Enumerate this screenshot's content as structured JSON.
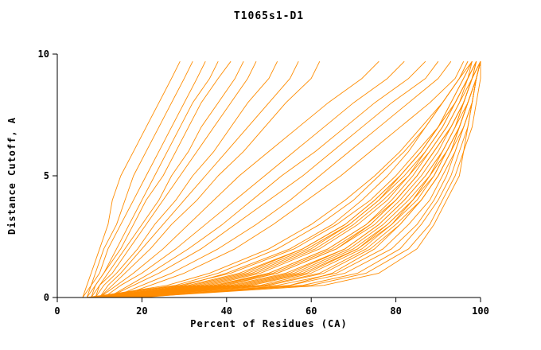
{
  "colors": {
    "line": "#ff8c00",
    "axis": "#000000",
    "background": "#ffffff"
  },
  "chart_data": {
    "type": "line",
    "title": "T1065s1-D1",
    "xlabel": "Percent of Residues (CA)",
    "ylabel": "Distance Cutoff, A",
    "xlim": [
      0,
      100
    ],
    "ylim": [
      0,
      10
    ],
    "xticks": [
      0,
      20,
      40,
      60,
      80,
      100
    ],
    "yticks": [
      0,
      5,
      10
    ],
    "grid": false,
    "legend": "none",
    "y_grid": [
      0,
      0.5,
      1,
      2,
      3,
      4,
      5,
      6,
      7,
      8,
      9,
      9.7
    ],
    "series": [
      [
        6,
        7,
        8,
        10,
        12,
        13,
        15,
        18,
        21,
        24,
        27,
        29
      ],
      [
        7,
        8,
        9,
        11,
        14,
        16,
        18,
        21,
        24,
        27,
        30,
        32
      ],
      [
        6,
        8,
        10,
        12,
        15,
        18,
        21,
        24,
        27,
        30,
        33,
        35
      ],
      [
        8,
        9,
        11,
        14,
        17,
        20,
        23,
        26,
        29,
        32,
        36,
        38
      ],
      [
        7,
        9,
        11,
        15,
        18,
        21,
        25,
        28,
        31,
        34,
        38,
        41
      ],
      [
        9,
        10,
        12,
        16,
        20,
        24,
        27,
        31,
        34,
        38,
        42,
        44
      ],
      [
        8,
        10,
        13,
        17,
        21,
        25,
        29,
        33,
        37,
        41,
        45,
        47
      ],
      [
        9,
        11,
        14,
        19,
        23,
        28,
        32,
        37,
        41,
        45,
        50,
        52
      ],
      [
        10,
        12,
        15,
        20,
        25,
        30,
        35,
        40,
        45,
        50,
        55,
        57
      ],
      [
        10,
        13,
        16,
        22,
        27,
        33,
        38,
        44,
        49,
        54,
        60,
        62
      ],
      [
        10,
        14,
        18,
        25,
        31,
        37,
        43,
        50,
        57,
        64,
        72,
        76
      ],
      [
        11,
        15,
        20,
        28,
        35,
        42,
        49,
        56,
        63,
        70,
        78,
        82
      ],
      [
        12,
        17,
        22,
        31,
        39,
        46,
        53,
        61,
        68,
        75,
        83,
        87
      ],
      [
        12,
        18,
        24,
        34,
        42,
        50,
        58,
        65,
        72,
        79,
        87,
        90
      ],
      [
        13,
        20,
        27,
        38,
        47,
        55,
        62,
        69,
        76,
        83,
        90,
        93
      ],
      [
        14,
        22,
        30,
        42,
        51,
        59,
        67,
        74,
        81,
        88,
        94,
        96
      ],
      [
        7,
        30,
        40,
        55,
        65,
        72,
        78,
        83,
        87,
        91,
        95,
        97
      ],
      [
        8,
        34,
        46,
        60,
        69,
        76,
        81,
        86,
        90,
        93,
        96,
        98
      ],
      [
        9,
        38,
        50,
        64,
        73,
        79,
        84,
        88,
        92,
        95,
        97,
        99
      ],
      [
        7,
        28,
        38,
        52,
        62,
        70,
        76,
        82,
        87,
        91,
        95,
        98
      ],
      [
        8,
        32,
        44,
        58,
        68,
        75,
        81,
        86,
        90,
        94,
        97,
        99
      ],
      [
        10,
        40,
        52,
        66,
        74,
        80,
        85,
        89,
        93,
        96,
        98,
        100
      ],
      [
        9,
        36,
        48,
        62,
        71,
        78,
        83,
        88,
        92,
        95,
        98,
        100
      ],
      [
        8,
        26,
        36,
        50,
        60,
        68,
        75,
        81,
        86,
        91,
        95,
        97
      ],
      [
        10,
        42,
        55,
        68,
        76,
        82,
        87,
        91,
        94,
        96,
        98,
        99
      ],
      [
        11,
        45,
        58,
        71,
        78,
        84,
        88,
        92,
        95,
        97,
        99,
        100
      ],
      [
        9,
        33,
        45,
        59,
        69,
        76,
        82,
        87,
        91,
        94,
        97,
        99
      ],
      [
        8,
        29,
        41,
        56,
        66,
        74,
        80,
        85,
        90,
        93,
        96,
        98
      ],
      [
        12,
        48,
        60,
        72,
        79,
        85,
        89,
        92,
        95,
        97,
        99,
        100
      ],
      [
        10,
        37,
        50,
        64,
        73,
        80,
        85,
        89,
        93,
        96,
        98,
        99
      ],
      [
        11,
        43,
        56,
        69,
        77,
        83,
        88,
        91,
        94,
        97,
        99,
        100
      ],
      [
        9,
        31,
        43,
        58,
        68,
        75,
        81,
        86,
        90,
        94,
        97,
        98
      ],
      [
        12,
        46,
        59,
        71,
        79,
        84,
        89,
        92,
        95,
        97,
        99,
        100
      ],
      [
        10,
        39,
        52,
        66,
        75,
        81,
        86,
        90,
        93,
        96,
        98,
        99
      ],
      [
        13,
        50,
        63,
        74,
        81,
        86,
        90,
        93,
        96,
        98,
        99,
        100
      ],
      [
        11,
        41,
        54,
        68,
        76,
        82,
        87,
        91,
        94,
        96,
        98,
        100
      ],
      [
        15,
        55,
        68,
        79,
        85,
        89,
        92,
        94,
        96,
        98,
        99,
        100
      ],
      [
        16,
        58,
        71,
        81,
        86,
        90,
        93,
        95,
        97,
        98,
        99,
        100
      ],
      [
        14,
        52,
        66,
        77,
        83,
        88,
        91,
        94,
        96,
        98,
        99,
        100
      ],
      [
        17,
        60,
        73,
        83,
        88,
        91,
        94,
        96,
        97,
        98,
        99,
        100
      ],
      [
        18,
        63,
        76,
        85,
        89,
        92,
        95,
        96,
        98,
        99,
        100,
        100
      ],
      [
        20,
        55,
        65,
        75,
        81,
        86,
        90,
        93,
        95,
        97,
        99,
        100
      ],
      [
        9,
        35,
        47,
        61,
        70,
        77,
        83,
        87,
        91,
        94,
        97,
        99
      ],
      [
        10,
        38,
        51,
        65,
        74,
        80,
        85,
        89,
        93,
        96,
        98,
        100
      ],
      [
        12,
        44,
        57,
        70,
        78,
        84,
        88,
        92,
        95,
        97,
        99,
        100
      ],
      [
        13,
        49,
        62,
        73,
        80,
        86,
        90,
        93,
        95,
        97,
        99,
        100
      ]
    ]
  }
}
